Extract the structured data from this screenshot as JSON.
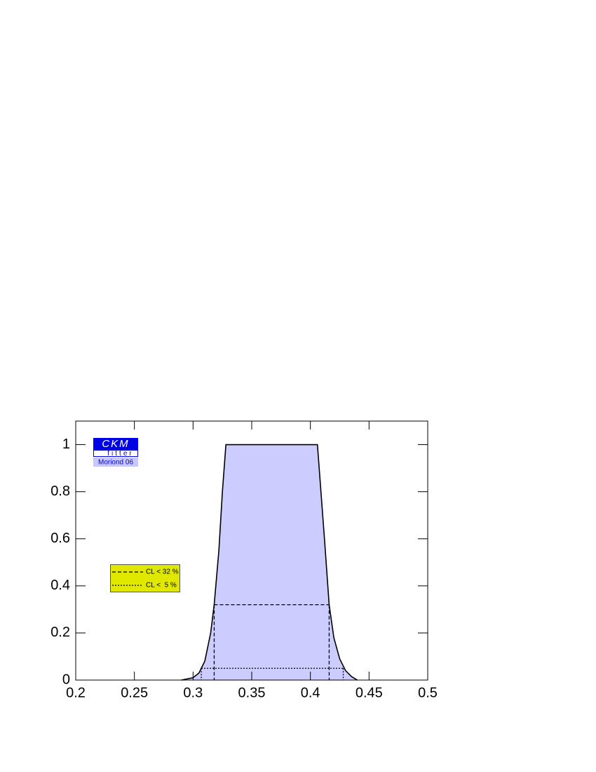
{
  "chart_data": {
    "type": "line",
    "x": [
      0.29,
      0.3,
      0.305,
      0.31,
      0.315,
      0.318,
      0.322,
      0.325,
      0.328,
      0.406,
      0.409,
      0.412,
      0.416,
      0.42,
      0.425,
      0.43,
      0.435,
      0.44
    ],
    "series": [
      {
        "color": "#000000",
        "fill": "#ccccff",
        "values": [
          0,
          0.01,
          0.03,
          0.08,
          0.2,
          0.32,
          0.55,
          0.8,
          1,
          1,
          0.8,
          0.6,
          0.32,
          0.18,
          0.09,
          0.04,
          0.015,
          0
        ]
      }
    ],
    "xlim": [
      0.2,
      0.5
    ],
    "xticks": [
      0.2,
      0.25,
      0.3,
      0.35,
      0.4,
      0.45,
      0.5
    ],
    "ylim": [
      0,
      1.1
    ],
    "yticks": [
      0,
      0.2,
      0.4,
      0.6,
      0.8,
      1
    ],
    "cl_lines": [
      {
        "name": "CL < 32 %",
        "level": 0.32,
        "interval": [
          0.318,
          0.416
        ],
        "dash": "dashed"
      },
      {
        "name": "CL <  5 %",
        "level": 0.05,
        "interval": [
          0.307,
          0.428
        ],
        "dash": "dotted"
      }
    ],
    "logo": {
      "title": "CKM",
      "subtitle": "fitter",
      "tag": "Moriond 06"
    }
  }
}
